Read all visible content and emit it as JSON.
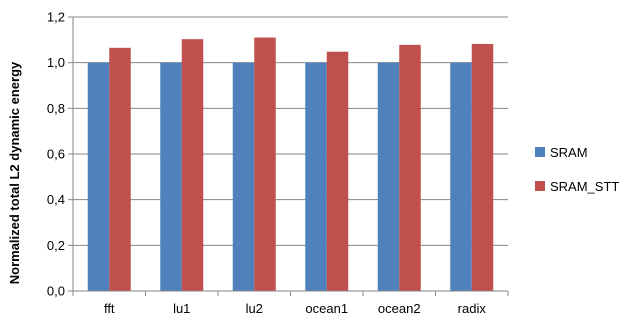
{
  "chart_data": {
    "type": "bar",
    "ylabel": "Normalized total L2 dynamic energy",
    "xlabel": "",
    "categories": [
      "fft",
      "lu1",
      "lu2",
      "ocean1",
      "ocean2",
      "radix"
    ],
    "series": [
      {
        "name": "SRAM",
        "color": "#4f81bd",
        "values": [
          1.0,
          1.0,
          1.0,
          1.0,
          1.0,
          1.0
        ]
      },
      {
        "name": "SRAM_STT",
        "color": "#c0504d",
        "values": [
          1.065,
          1.103,
          1.11,
          1.048,
          1.078,
          1.082
        ]
      }
    ],
    "ylim": [
      0,
      1.2
    ],
    "yticks": [
      "0,0",
      "0,2",
      "0,4",
      "0,6",
      "0,8",
      "1,0",
      "1,2"
    ],
    "grid": true,
    "legend_position": "right"
  }
}
